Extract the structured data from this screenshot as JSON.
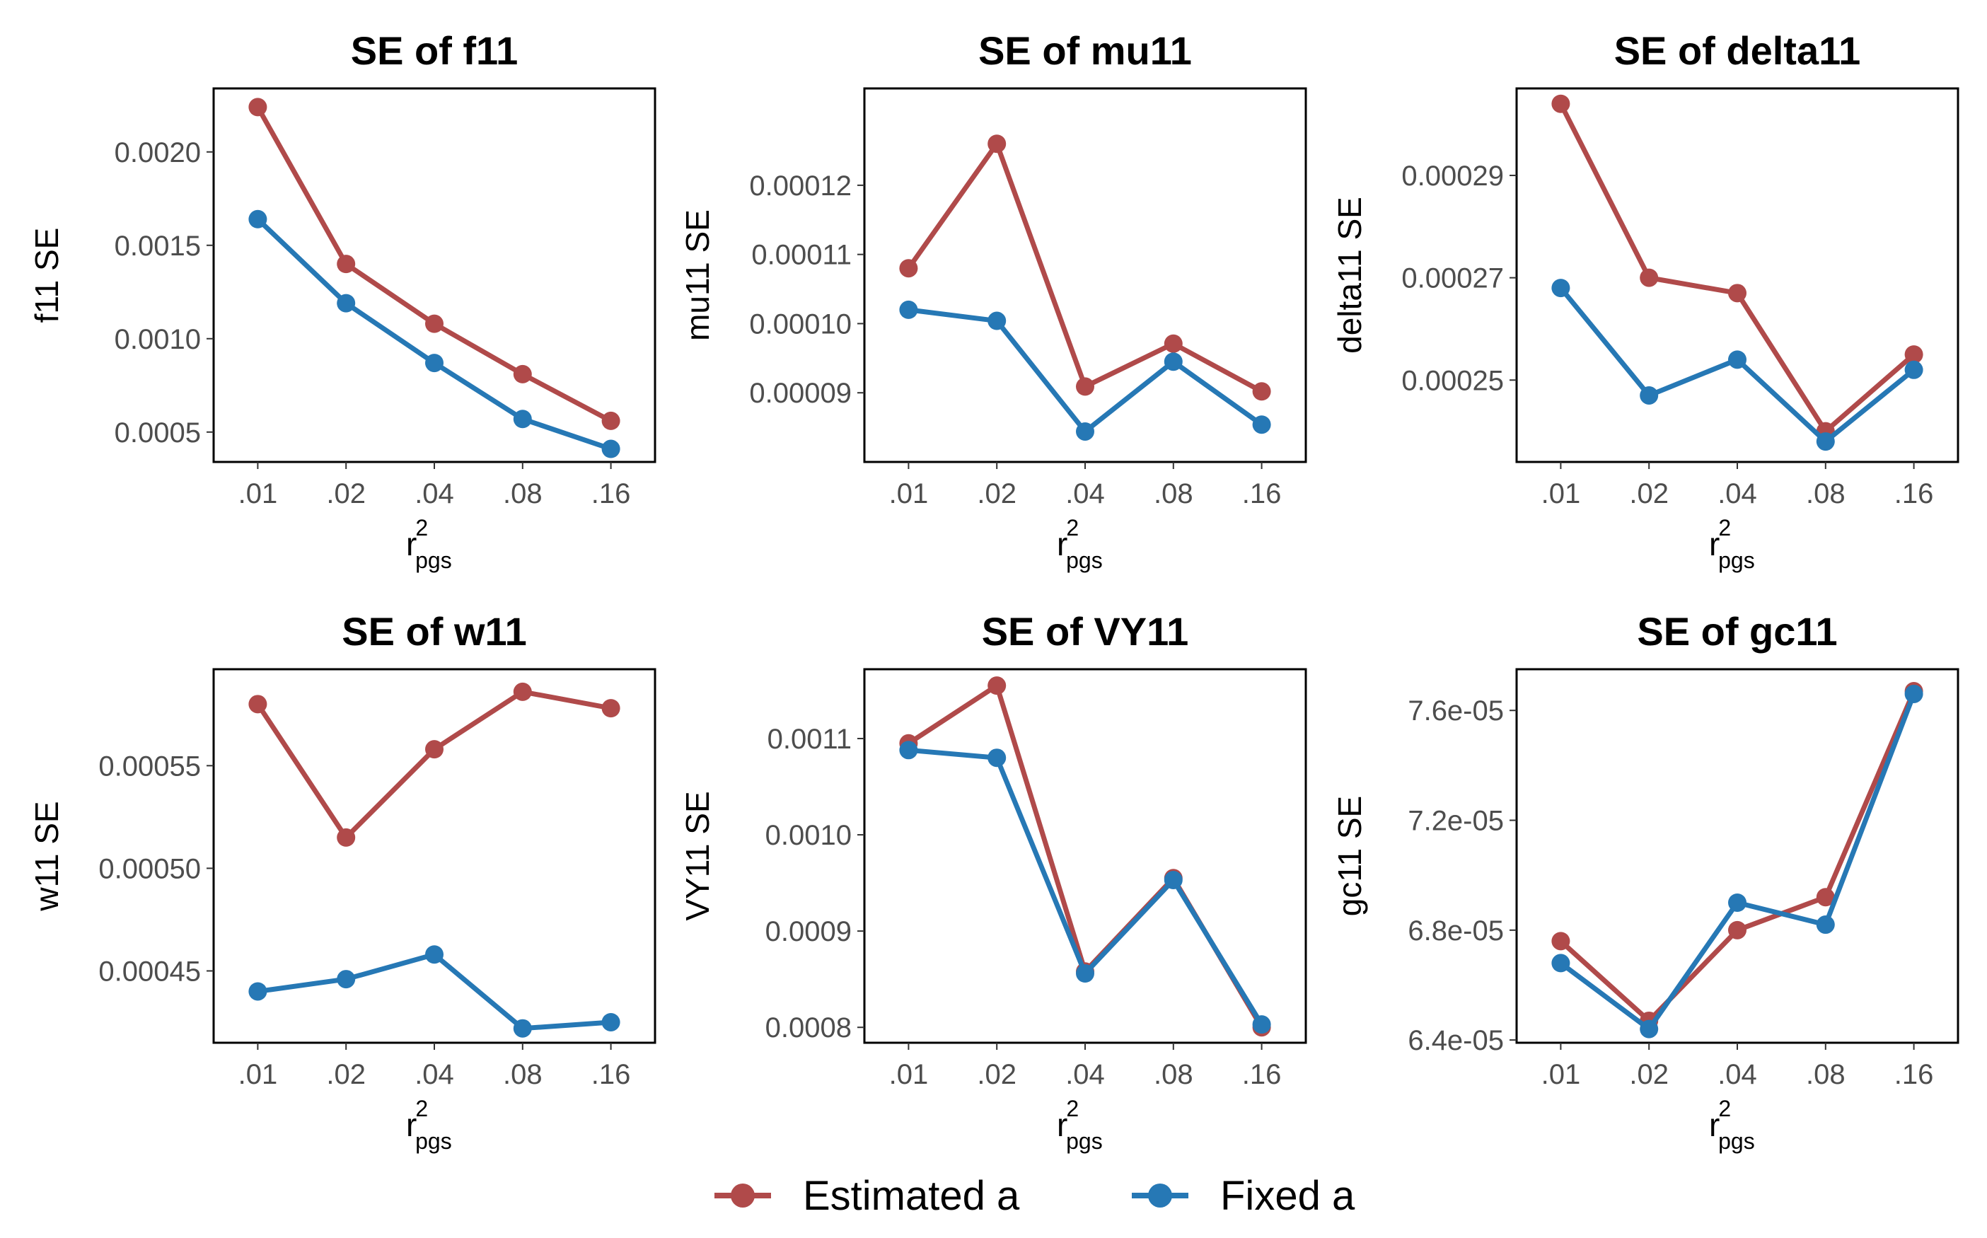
{
  "colors": {
    "estimated": "#b04a4a",
    "fixed": "#2678b5"
  },
  "legend": [
    {
      "label": "Estimated a",
      "series_index": 0
    },
    {
      "label": "Fixed a",
      "series_index": 1
    }
  ],
  "chart_data": [
    {
      "type": "line",
      "title": "SE of f11",
      "xlabel": {
        "base": "r",
        "sup": "2",
        "sub": "pgs"
      },
      "ylabel": "f11 SE",
      "categories": [
        ".01",
        ".02",
        ".04",
        ".08",
        ".16"
      ],
      "ylim": [
        0.00034,
        0.00234
      ],
      "yticks": [
        0.0005,
        0.001,
        0.0015,
        0.002
      ],
      "yticklabels": [
        "0.0005",
        "0.0010",
        "0.0015",
        "0.0020"
      ],
      "series": [
        {
          "name": "Estimated a",
          "values": [
            0.00224,
            0.0014,
            0.00108,
            0.00081,
            0.00056
          ]
        },
        {
          "name": "Fixed a",
          "values": [
            0.00164,
            0.00119,
            0.00087,
            0.00057,
            0.00041
          ]
        }
      ]
    },
    {
      "type": "line",
      "title": "SE of mu11",
      "xlabel": {
        "base": "r",
        "sup": "2",
        "sub": "pgs"
      },
      "ylabel": "mu11 SE",
      "categories": [
        ".01",
        ".02",
        ".04",
        ".08",
        ".16"
      ],
      "ylim": [
        8e-05,
        0.000134
      ],
      "yticks": [
        9e-05,
        0.0001,
        0.00011,
        0.00012
      ],
      "yticklabels": [
        "0.00009",
        "0.00010",
        "0.00011",
        "0.00012"
      ],
      "series": [
        {
          "name": "Estimated a",
          "values": [
            0.000108,
            0.000126,
            9.09e-05,
            9.71e-05,
            9.02e-05
          ]
        },
        {
          "name": "Fixed a",
          "values": [
            0.000102,
            0.0001004,
            8.44e-05,
            9.45e-05,
            8.54e-05
          ]
        }
      ]
    },
    {
      "type": "line",
      "title": "SE of delta11",
      "xlabel": {
        "base": "r",
        "sup": "2",
        "sub": "pgs"
      },
      "ylabel": "delta11 SE",
      "categories": [
        ".01",
        ".02",
        ".04",
        ".08",
        ".16"
      ],
      "ylim": [
        0.000234,
        0.000307
      ],
      "yticks": [
        0.00025,
        0.00027,
        0.00029
      ],
      "yticklabels": [
        "0.00025",
        "0.00027",
        "0.00029"
      ],
      "series": [
        {
          "name": "Estimated a",
          "values": [
            0.000304,
            0.00027,
            0.000267,
            0.00024,
            0.000255
          ]
        },
        {
          "name": "Fixed a",
          "values": [
            0.000268,
            0.000247,
            0.000254,
            0.000238,
            0.000252
          ]
        }
      ]
    },
    {
      "type": "line",
      "title": "SE of w11",
      "xlabel": {
        "base": "r",
        "sup": "2",
        "sub": "pgs"
      },
      "ylabel": "w11 SE",
      "categories": [
        ".01",
        ".02",
        ".04",
        ".08",
        ".16"
      ],
      "ylim": [
        0.000415,
        0.000597
      ],
      "yticks": [
        0.00045,
        0.0005,
        0.00055
      ],
      "yticklabels": [
        "0.00045",
        "0.00050",
        "0.00055"
      ],
      "series": [
        {
          "name": "Estimated a",
          "values": [
            0.00058,
            0.000515,
            0.000558,
            0.000586,
            0.000578
          ]
        },
        {
          "name": "Fixed a",
          "values": [
            0.00044,
            0.000446,
            0.000458,
            0.000422,
            0.000425
          ]
        }
      ]
    },
    {
      "type": "line",
      "title": "SE of VY11",
      "xlabel": {
        "base": "r",
        "sup": "2",
        "sub": "pgs"
      },
      "ylabel": "VY11 SE",
      "categories": [
        ".01",
        ".02",
        ".04",
        ".08",
        ".16"
      ],
      "ylim": [
        0.000784,
        0.001172
      ],
      "yticks": [
        0.0008,
        0.0009,
        0.001,
        0.0011
      ],
      "yticklabels": [
        "0.0008",
        "0.0009",
        "0.0010",
        "0.0011"
      ],
      "series": [
        {
          "name": "Estimated a",
          "values": [
            0.001095,
            0.001155,
            0.000858,
            0.000955,
            0.0008
          ]
        },
        {
          "name": "Fixed a",
          "values": [
            0.001088,
            0.00108,
            0.000856,
            0.000953,
            0.000803
          ]
        }
      ]
    },
    {
      "type": "line",
      "title": "SE of gc11",
      "xlabel": {
        "base": "r",
        "sup": "2",
        "sub": "pgs"
      },
      "ylabel": "gc11 SE",
      "categories": [
        ".01",
        ".02",
        ".04",
        ".08",
        ".16"
      ],
      "ylim": [
        6.39e-05,
        7.75e-05
      ],
      "yticks": [
        6.4e-05,
        6.8e-05,
        7.2e-05,
        7.6e-05
      ],
      "yticklabels": [
        "6.4e-05",
        "6.8e-05",
        "7.2e-05",
        "7.6e-05"
      ],
      "series": [
        {
          "name": "Estimated a",
          "values": [
            6.76e-05,
            6.47e-05,
            6.8e-05,
            6.92e-05,
            7.67e-05
          ]
        },
        {
          "name": "Fixed a",
          "values": [
            6.68e-05,
            6.44e-05,
            6.9e-05,
            6.82e-05,
            7.66e-05
          ]
        }
      ]
    }
  ]
}
